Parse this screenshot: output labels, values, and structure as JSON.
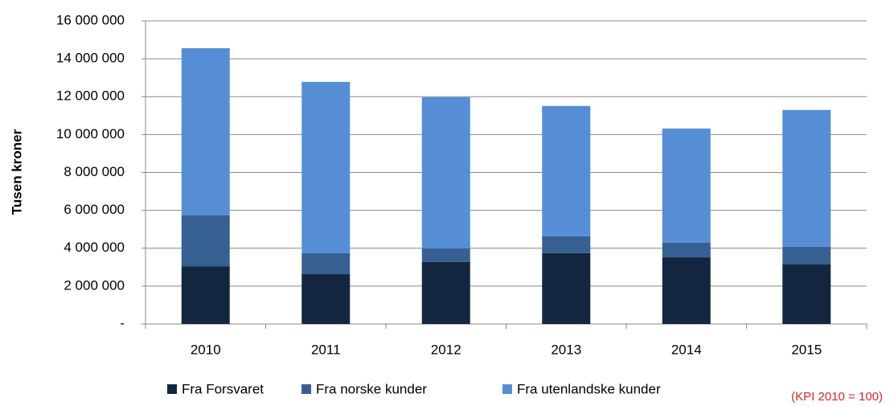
{
  "chart_data": {
    "type": "bar",
    "stacked": true,
    "y_axis_label": "Tusen kroner",
    "annotation": "(KPI 2010 = 100)",
    "categories": [
      "2010",
      "2011",
      "2012",
      "2013",
      "2014",
      "2015"
    ],
    "series": [
      {
        "name": "Fra Forsvaret",
        "color": "#14263f",
        "values": [
          3050000,
          2630000,
          3270000,
          3740000,
          3520000,
          3140000
        ]
      },
      {
        "name": "Fra norske kunder",
        "color": "#376092",
        "values": [
          2680000,
          1110000,
          720000,
          890000,
          770000,
          940000
        ]
      },
      {
        "name": "Fra utenlandske kunder",
        "color": "#558ed5",
        "values": [
          8830000,
          9040000,
          7980000,
          6880000,
          6030000,
          7220000
        ]
      }
    ],
    "ylim": [
      0,
      16000000
    ],
    "yticks": [
      {
        "value": 0,
        "label": "-"
      },
      {
        "value": 2000000,
        "label": "2 000 000"
      },
      {
        "value": 4000000,
        "label": "4 000 000"
      },
      {
        "value": 6000000,
        "label": "6 000 000"
      },
      {
        "value": 8000000,
        "label": "8 000 000"
      },
      {
        "value": 10000000,
        "label": "10 000 000"
      },
      {
        "value": 12000000,
        "label": "12 000 000"
      },
      {
        "value": 14000000,
        "label": "14 000 000"
      },
      {
        "value": 16000000,
        "label": "16 000 000"
      }
    ],
    "grid": true,
    "legend": "bottom"
  }
}
